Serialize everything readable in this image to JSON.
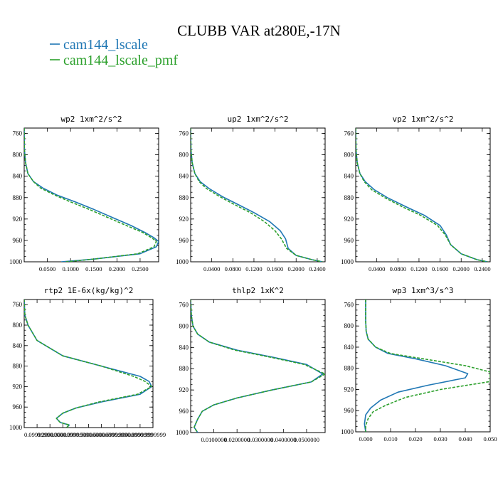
{
  "figure": {
    "title": "CLUBB VAR at280E,-17N"
  },
  "legend": [
    {
      "label": "cam144_lscale",
      "color": "#1f77b4",
      "dash": "solid"
    },
    {
      "label": "cam144_lscale_pmf",
      "color": "#2ca02c",
      "dash": "dashed"
    }
  ],
  "chart_data": [
    {
      "type": "line",
      "title": "wp2  1xm^2/s^2",
      "ylim": [
        1000,
        750
      ],
      "xlim": [
        0,
        0.29
      ],
      "yticks": [
        "760",
        "800",
        "840",
        "880",
        "920",
        "960",
        "1000"
      ],
      "ytick_values": [
        760,
        800,
        840,
        880,
        920,
        960,
        1000
      ],
      "xticks": [
        "0.0500",
        "0.1000",
        "0.1500",
        "0.2000",
        "0.2500"
      ],
      "xtick_values": [
        0.05,
        0.1,
        0.15,
        0.2,
        0.25
      ],
      "series": [
        {
          "name": "cam144_lscale",
          "color": "#1f77b4",
          "dash": "solid",
          "x": [
            0.0,
            0.0005,
            0.003,
            0.008,
            0.02,
            0.04,
            0.07,
            0.11,
            0.15,
            0.19,
            0.23,
            0.26,
            0.28,
            0.29,
            0.285,
            0.25,
            0.15,
            0.08
          ],
          "y": [
            750,
            790,
            815,
            835,
            850,
            862,
            875,
            888,
            902,
            917,
            932,
            945,
            955,
            962,
            972,
            985,
            995,
            1000
          ]
        },
        {
          "name": "cam144_lscale_pmf",
          "color": "#2ca02c",
          "dash": "dashed",
          "x": [
            0.0,
            0.0005,
            0.003,
            0.008,
            0.02,
            0.035,
            0.065,
            0.1,
            0.14,
            0.18,
            0.22,
            0.255,
            0.275,
            0.285,
            0.28,
            0.245,
            0.15,
            0.09
          ],
          "y": [
            750,
            790,
            815,
            835,
            850,
            862,
            875,
            888,
            902,
            917,
            932,
            945,
            955,
            962,
            972,
            985,
            995,
            1000
          ]
        }
      ]
    },
    {
      "type": "line",
      "title": "up2  1xm^2/s^2",
      "ylim": [
        1000,
        750
      ],
      "xlim": [
        0,
        0.255
      ],
      "yticks": [
        "760",
        "800",
        "840",
        "880",
        "920",
        "960",
        "1000"
      ],
      "ytick_values": [
        760,
        800,
        840,
        880,
        920,
        960,
        1000
      ],
      "xticks": [
        "0.0400",
        "0.0800",
        "0.1200",
        "0.1600",
        "0.2000",
        "0.2400"
      ],
      "xtick_values": [
        0.04,
        0.08,
        0.12,
        0.16,
        0.2,
        0.24
      ],
      "series": [
        {
          "name": "cam144_lscale",
          "color": "#1f77b4",
          "dash": "solid",
          "x": [
            0.0,
            0.0005,
            0.003,
            0.008,
            0.018,
            0.035,
            0.06,
            0.09,
            0.12,
            0.15,
            0.17,
            0.18,
            0.185,
            0.2,
            0.23,
            0.25
          ],
          "y": [
            750,
            790,
            815,
            835,
            850,
            863,
            878,
            893,
            908,
            925,
            942,
            957,
            975,
            988,
            996,
            1000
          ]
        },
        {
          "name": "cam144_lscale_pmf",
          "color": "#2ca02c",
          "dash": "dashed",
          "x": [
            0.0,
            0.0005,
            0.003,
            0.008,
            0.016,
            0.03,
            0.055,
            0.083,
            0.113,
            0.14,
            0.16,
            0.172,
            0.182,
            0.2,
            0.23,
            0.25
          ],
          "y": [
            750,
            790,
            815,
            835,
            850,
            863,
            878,
            893,
            908,
            925,
            942,
            957,
            975,
            988,
            996,
            1000
          ]
        }
      ]
    },
    {
      "type": "line",
      "title": "vp2  1xm^2/s^2",
      "ylim": [
        1000,
        750
      ],
      "xlim": [
        0,
        0.255
      ],
      "yticks": [
        "760",
        "800",
        "840",
        "880",
        "920",
        "960",
        "1000"
      ],
      "ytick_values": [
        760,
        800,
        840,
        880,
        920,
        960,
        1000
      ],
      "xticks": [
        "0.0400",
        "0.0800",
        "0.1200",
        "0.1600",
        "0.2000",
        "0.2400"
      ],
      "xtick_values": [
        0.04,
        0.08,
        0.12,
        0.16,
        0.2,
        0.24
      ],
      "series": [
        {
          "name": "cam144_lscale",
          "color": "#1f77b4",
          "dash": "solid",
          "x": [
            0.0,
            0.0005,
            0.003,
            0.008,
            0.018,
            0.035,
            0.06,
            0.095,
            0.13,
            0.16,
            0.172,
            0.18,
            0.2,
            0.23,
            0.25
          ],
          "y": [
            750,
            790,
            815,
            835,
            850,
            865,
            880,
            897,
            913,
            932,
            950,
            968,
            985,
            996,
            1000
          ]
        },
        {
          "name": "cam144_lscale_pmf",
          "color": "#2ca02c",
          "dash": "dashed",
          "x": [
            0.0,
            0.0005,
            0.003,
            0.008,
            0.016,
            0.03,
            0.055,
            0.088,
            0.123,
            0.155,
            0.17,
            0.18,
            0.2,
            0.23,
            0.25
          ],
          "y": [
            750,
            790,
            815,
            835,
            850,
            865,
            880,
            897,
            913,
            932,
            950,
            968,
            985,
            996,
            1000
          ]
        }
      ]
    },
    {
      "type": "line",
      "title": "rtp2  1E-6x(kg/kg)^2",
      "ylim": [
        1000,
        750
      ],
      "xlim": [
        0,
        1.0
      ],
      "yticks": [
        "760",
        "800",
        "840",
        "880",
        "920",
        "960",
        "1000"
      ],
      "ytick_values": [
        760,
        800,
        840,
        880,
        920,
        960,
        1000
      ],
      "xticks": [
        "0.0999999",
        "0.2000000",
        "0.3000000",
        "0.3999999",
        "0.5000000",
        "0.6000000",
        "0.6999999",
        "0.8000000",
        "0.8999999",
        "0.9999999"
      ],
      "xtick_values": [
        0.1,
        0.2,
        0.3,
        0.4,
        0.5,
        0.6,
        0.7,
        0.8,
        0.9,
        1.0
      ],
      "series": [
        {
          "name": "cam144_lscale",
          "color": "#1f77b4",
          "dash": "solid",
          "x": [
            0.0,
            0.005,
            0.03,
            0.1,
            0.3,
            0.6,
            0.9,
            0.97,
            0.99,
            0.9,
            0.6,
            0.4,
            0.3,
            0.25,
            0.28,
            0.35,
            0.33
          ],
          "y": [
            750,
            780,
            800,
            830,
            860,
            880,
            900,
            910,
            920,
            935,
            950,
            962,
            972,
            982,
            990,
            995,
            1000
          ]
        },
        {
          "name": "cam144_lscale_pmf",
          "color": "#2ca02c",
          "dash": "dashed",
          "x": [
            0.0,
            0.005,
            0.03,
            0.1,
            0.3,
            0.6,
            0.85,
            0.94,
            0.99,
            0.88,
            0.58,
            0.4,
            0.3,
            0.25,
            0.28,
            0.35,
            0.33
          ],
          "y": [
            750,
            780,
            800,
            830,
            860,
            880,
            900,
            910,
            920,
            935,
            950,
            962,
            972,
            982,
            990,
            995,
            1000
          ]
        }
      ]
    },
    {
      "type": "line",
      "title": "thlp2  1xK^2",
      "ylim": [
        1000,
        750
      ],
      "xlim": [
        0,
        0.058
      ],
      "yticks": [
        "760",
        "800",
        "840",
        "880",
        "920",
        "960",
        "1000"
      ],
      "ytick_values": [
        760,
        800,
        840,
        880,
        920,
        960,
        1000
      ],
      "xticks": [
        "0.0100000",
        "0.0200000",
        "0.0300000",
        "0.0400000",
        "0.0500000"
      ],
      "xtick_values": [
        0.01,
        0.02,
        0.03,
        0.04,
        0.05
      ],
      "series": [
        {
          "name": "cam144_lscale",
          "color": "#1f77b4",
          "dash": "solid",
          "x": [
            0.0,
            0.0003,
            0.001,
            0.003,
            0.008,
            0.02,
            0.035,
            0.05,
            0.057,
            0.052,
            0.035,
            0.02,
            0.01,
            0.005,
            0.003,
            0.0015,
            0.003
          ],
          "y": [
            750,
            780,
            800,
            815,
            830,
            845,
            858,
            872,
            890,
            905,
            920,
            935,
            948,
            960,
            975,
            990,
            1000
          ]
        },
        {
          "name": "cam144_lscale_pmf",
          "color": "#2ca02c",
          "dash": "dashed",
          "x": [
            0.0,
            0.0003,
            0.001,
            0.003,
            0.008,
            0.019,
            0.034,
            0.049,
            0.058,
            0.052,
            0.035,
            0.02,
            0.01,
            0.005,
            0.003,
            0.0015,
            0.003
          ],
          "y": [
            750,
            780,
            800,
            815,
            830,
            845,
            858,
            872,
            890,
            905,
            920,
            935,
            948,
            960,
            975,
            990,
            1000
          ]
        }
      ]
    },
    {
      "type": "line",
      "title": "wp3  1xm^3/s^3",
      "ylim": [
        1000,
        750
      ],
      "xlim": [
        -0.004,
        0.05
      ],
      "yticks": [
        "760",
        "800",
        "840",
        "880",
        "920",
        "960",
        "1000"
      ],
      "ytick_values": [
        760,
        800,
        840,
        880,
        920,
        960,
        1000
      ],
      "xticks": [
        "0.000",
        "0.010",
        "0.020",
        "0.030",
        "0.040",
        "0.050"
      ],
      "xtick_values": [
        0.0,
        0.01,
        0.02,
        0.03,
        0.04,
        0.05
      ],
      "series": [
        {
          "name": "cam144_lscale",
          "color": "#1f77b4",
          "dash": "solid",
          "x": [
            0.0,
            0.0,
            0.0002,
            0.001,
            0.004,
            0.009,
            0.02,
            0.032,
            0.041,
            0.04,
            0.025,
            0.013,
            0.006,
            0.002,
            0.0,
            -0.0005,
            0.0
          ],
          "y": [
            750,
            790,
            810,
            825,
            840,
            852,
            862,
            875,
            890,
            898,
            912,
            925,
            940,
            955,
            968,
            985,
            1000
          ]
        },
        {
          "name": "cam144_lscale_pmf",
          "color": "#2ca02c",
          "dash": "dashed",
          "x": [
            0.0,
            0.0,
            0.0002,
            0.001,
            0.004,
            0.01,
            0.023,
            0.04,
            0.05,
            0.05,
            0.03,
            0.016,
            0.008,
            0.003,
            0.001,
            0.0,
            0.0
          ],
          "y": [
            750,
            790,
            810,
            825,
            840,
            852,
            862,
            875,
            887,
            905,
            920,
            935,
            950,
            962,
            975,
            988,
            1000
          ]
        }
      ]
    }
  ]
}
